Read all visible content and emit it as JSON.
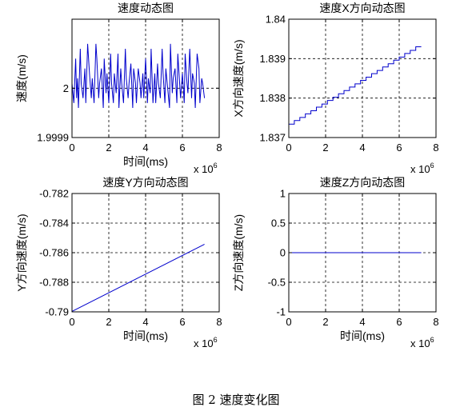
{
  "figure": {
    "caption": "图 2 速度变化图"
  },
  "chart_data": [
    {
      "type": "line",
      "title": "速度动态图",
      "xlabel": "时间(ms)",
      "ylabel": "速度(m/s)",
      "x_exponent_label": "x 10",
      "x_exponent": "6",
      "xlim": [
        0,
        8
      ],
      "ylim": [
        1.9999,
        2.00014
      ],
      "xticks": [
        0,
        2,
        4,
        6,
        8
      ],
      "xtick_labels": [
        "0",
        "2",
        "4",
        "6",
        "8"
      ],
      "yticks": [
        1.9999,
        2
      ],
      "ytick_labels": [
        "1.9999",
        "2"
      ],
      "grid": true,
      "line_color": "#0000cc",
      "series": [
        {
          "x": [
            0,
            0.1,
            0.2,
            0.25,
            0.3,
            0.35,
            0.45,
            0.5,
            0.6,
            0.7,
            0.75,
            0.85,
            0.95,
            1.05,
            1.1,
            1.2,
            1.3,
            1.35,
            1.45,
            1.5,
            1.6,
            1.7,
            1.75,
            1.85,
            1.9,
            2.0,
            2.1,
            2.15,
            2.25,
            2.3,
            2.4,
            2.5,
            2.55,
            2.65,
            2.7,
            2.8,
            2.9,
            2.95,
            3.05,
            3.1,
            3.2,
            3.3,
            3.35,
            3.45,
            3.5,
            3.6,
            3.7,
            3.75,
            3.85,
            3.9,
            4.0,
            4.1,
            4.15,
            4.25,
            4.3,
            4.4,
            4.5,
            4.55,
            4.65,
            4.7,
            4.8,
            4.9,
            4.95,
            5.05,
            5.1,
            5.2,
            5.3,
            5.35,
            5.45,
            5.5,
            5.6,
            5.7,
            5.75,
            5.85,
            5.9,
            6.0,
            6.1,
            6.15,
            6.25,
            6.3,
            6.4,
            6.5,
            6.55,
            6.65,
            6.7,
            6.8,
            6.9,
            6.95,
            7.05,
            7.1,
            7.2
          ],
          "y": [
            2.00001,
            1.99997,
            2.00006,
            1.99998,
            2.00002,
            1.99996,
            2.00008,
            2.00001,
            1.99998,
            2.00004,
            1.99997,
            2.00009,
            2.00003,
            1.99998,
            2.00002,
            1.99997,
            2.00009,
            2.00006,
            1.99998,
            2.00001,
            2.00004,
            1.99996,
            2.00006,
            1.99999,
            2.00003,
            1.99997,
            2.00007,
            2.00001,
            1.99997,
            2.00003,
            1.99999,
            2.00007,
            1.99996,
            2.00004,
            2.00001,
            1.99997,
            2.00008,
            2.00002,
            1.99998,
            2.00001,
            2.00005,
            1.99996,
            2.00004,
            2.00001,
            1.99997,
            2.00004,
            2.00001,
            1.99998,
            2.00003,
            1.99998,
            2.00006,
            1.99997,
            2.00002,
            1.99999,
            2.00008,
            1.99997,
            2.00003,
            1.99997,
            2.00005,
            2.00001,
            1.99998,
            2.00008,
            2.00003,
            1.99997,
            2.00004,
            2.0,
            1.99996,
            2.00009,
            1.99999,
            2.00002,
            2.00004,
            1.99997,
            2.00007,
            2.00001,
            1.99998,
            2.00003,
            1.99997,
            2.00007,
            2.00001,
            1.99999,
            2.00008,
            1.99998,
            2.00003,
            2.00001,
            1.99996,
            2.00007,
            2.00004,
            1.99997,
            2.00002,
            2.00001,
            1.99998
          ]
        }
      ]
    },
    {
      "type": "line",
      "title": "速度X方向动态图",
      "xlabel": "",
      "ylabel": "X方向速度(m/s)",
      "x_exponent_label": "x 10",
      "x_exponent": "6",
      "xlim": [
        0,
        8
      ],
      "ylim": [
        1.837,
        1.84
      ],
      "xticks": [
        0,
        2,
        4,
        6,
        8
      ],
      "xtick_labels": [
        "0",
        "2",
        "4",
        "6",
        "8"
      ],
      "yticks": [
        1.837,
        1.838,
        1.839,
        1.84
      ],
      "ytick_labels": [
        "1.837",
        "1.838",
        "1.839",
        "1.84"
      ],
      "grid": true,
      "line_color": "#0000cc",
      "series": [
        {
          "x": [
            0,
            0.3,
            0.3,
            0.6,
            0.6,
            0.9,
            0.9,
            1.2,
            1.2,
            1.5,
            1.5,
            1.8,
            1.8,
            2.1,
            2.1,
            2.4,
            2.4,
            2.7,
            2.7,
            3.0,
            3.0,
            3.3,
            3.3,
            3.6,
            3.6,
            3.9,
            3.9,
            4.2,
            4.2,
            4.5,
            4.5,
            4.8,
            4.8,
            5.1,
            5.1,
            5.4,
            5.4,
            5.7,
            5.7,
            6.0,
            6.0,
            6.3,
            6.3,
            6.6,
            6.6,
            6.9,
            6.9,
            7.2
          ],
          "y": [
            1.83734,
            1.83734,
            1.83743,
            1.83743,
            1.83751,
            1.83751,
            1.8376,
            1.8376,
            1.83768,
            1.83768,
            1.83777,
            1.83777,
            1.83785,
            1.83785,
            1.83794,
            1.83794,
            1.83802,
            1.83802,
            1.83811,
            1.83811,
            1.83819,
            1.83819,
            1.83828,
            1.83828,
            1.83836,
            1.83836,
            1.83845,
            1.83845,
            1.83853,
            1.83853,
            1.83862,
            1.83862,
            1.8387,
            1.8387,
            1.83879,
            1.83879,
            1.83887,
            1.83887,
            1.83896,
            1.83896,
            1.83904,
            1.83904,
            1.83913,
            1.83913,
            1.83921,
            1.83921,
            1.8393,
            1.8393
          ]
        }
      ]
    },
    {
      "type": "line",
      "title": "速度Y方向动态图",
      "xlabel": "时间(ms)",
      "ylabel": "Y方向速度(m/s)",
      "x_exponent_label": "x 10",
      "x_exponent": "6",
      "xlim": [
        0,
        8
      ],
      "ylim": [
        -0.79,
        -0.782
      ],
      "xticks": [
        0,
        2,
        4,
        6,
        8
      ],
      "xtick_labels": [
        "0",
        "2",
        "4",
        "6",
        "8"
      ],
      "yticks": [
        -0.79,
        -0.788,
        -0.786,
        -0.784,
        -0.782
      ],
      "ytick_labels": [
        "-0.79",
        "-0.788",
        "-0.786",
        "-0.784",
        "-0.782"
      ],
      "grid": true,
      "line_color": "#0000cc",
      "series": [
        {
          "x": [
            0,
            7.2
          ],
          "y": [
            -0.78997,
            -0.78543
          ]
        }
      ]
    },
    {
      "type": "line",
      "title": "速度Z方向动态图",
      "xlabel": "时间(ms)",
      "ylabel": "Z方向速度(m/s)",
      "x_exponent_label": "x 10",
      "x_exponent": "6",
      "xlim": [
        0,
        8
      ],
      "ylim": [
        -1,
        1
      ],
      "xticks": [
        0,
        2,
        4,
        6,
        8
      ],
      "xtick_labels": [
        "0",
        "2",
        "4",
        "6",
        "8"
      ],
      "yticks": [
        -1,
        -0.5,
        0,
        0.5,
        1
      ],
      "ytick_labels": [
        "-1",
        "-0.5",
        "0",
        "0.5",
        "1"
      ],
      "grid": true,
      "line_color": "#0000cc",
      "series": [
        {
          "x": [
            0,
            7.2
          ],
          "y": [
            0,
            0
          ]
        }
      ]
    }
  ]
}
